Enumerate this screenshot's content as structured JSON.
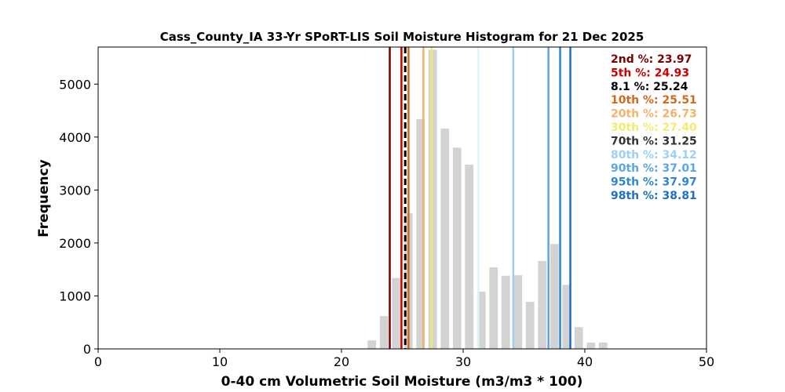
{
  "chart_data": {
    "type": "bar",
    "title": "Cass_County_IA 33-Yr SPoRT-LIS Soil Moisture Histogram for 21 Dec 2025",
    "xlabel": "0-40 cm Volumetric Soil Moisture (m3/m3 * 100)",
    "ylabel": "Frequency",
    "xlim": [
      0,
      50
    ],
    "ylim": [
      0,
      5700
    ],
    "xticks": [
      "0",
      "10",
      "20",
      "30",
      "40",
      "50"
    ],
    "yticks": [
      "0",
      "1000",
      "2000",
      "3000",
      "4000",
      "5000"
    ],
    "bar_color": "#d3d3d3",
    "bars": [
      {
        "x": 22.5,
        "value": 160
      },
      {
        "x": 23.5,
        "value": 620
      },
      {
        "x": 24.5,
        "value": 1340
      },
      {
        "x": 25.5,
        "value": 2560
      },
      {
        "x": 26.5,
        "value": 4340
      },
      {
        "x": 27.5,
        "value": 5650
      },
      {
        "x": 28.5,
        "value": 4160
      },
      {
        "x": 29.5,
        "value": 3800
      },
      {
        "x": 30.5,
        "value": 3480
      },
      {
        "x": 31.5,
        "value": 1080
      },
      {
        "x": 32.5,
        "value": 1540
      },
      {
        "x": 33.5,
        "value": 1380
      },
      {
        "x": 34.5,
        "value": 1390
      },
      {
        "x": 35.5,
        "value": 890
      },
      {
        "x": 36.5,
        "value": 1660
      },
      {
        "x": 37.5,
        "value": 1980
      },
      {
        "x": 38.5,
        "value": 1210
      },
      {
        "x": 39.5,
        "value": 410
      },
      {
        "x": 40.5,
        "value": 120
      },
      {
        "x": 41.5,
        "value": 120
      }
    ],
    "percentile_lines": [
      {
        "label": "2nd %: 23.97",
        "value": 23.97,
        "color": "#7a0000",
        "dashed": false
      },
      {
        "label": "5th %: 24.93",
        "value": 24.93,
        "color": "#cc0000",
        "dashed": false
      },
      {
        "label": "8.1 %: 25.24",
        "value": 25.24,
        "color": "#000000",
        "dashed": true
      },
      {
        "label": "10th %: 25.51",
        "value": 25.51,
        "color": "#d2691e",
        "dashed": false
      },
      {
        "label": "20th %: 26.73",
        "value": 26.73,
        "color": "#f4b26b",
        "dashed": false
      },
      {
        "label": "30th %: 27.40",
        "value": 27.4,
        "color": "#f2ec6e",
        "dashed": false
      },
      {
        "label": "70th %: 31.25",
        "value": 31.25,
        "color": "#dff4fb",
        "dashed": false
      },
      {
        "label": "80th %: 34.12",
        "value": 34.12,
        "color": "#9ccff0",
        "dashed": false
      },
      {
        "label": "90th %: 37.01",
        "value": 37.01,
        "color": "#5aa6e6",
        "dashed": false
      },
      {
        "label": "95th %: 37.97",
        "value": 37.97,
        "color": "#2b86d6",
        "dashed": false
      },
      {
        "label": "98th %: 38.81",
        "value": 38.81,
        "color": "#1f6fc4",
        "dashed": false
      }
    ],
    "legend_placement": "top-right",
    "grid": false
  }
}
